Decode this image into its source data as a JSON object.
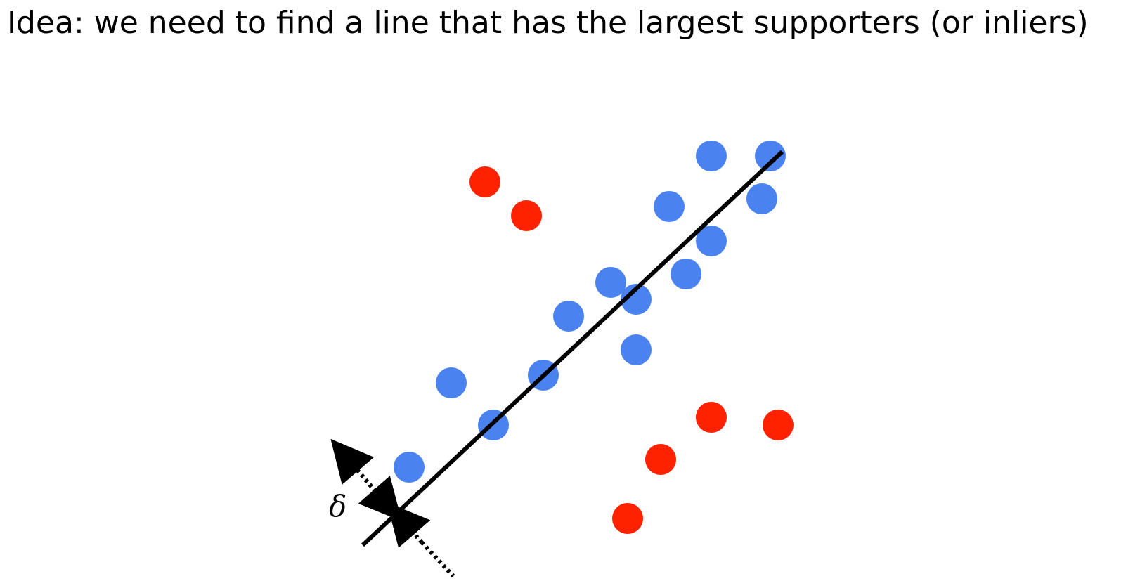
{
  "slide": {
    "text": "Idea: we need to find a line that has the largest supporters (or inliers)"
  },
  "diagram": {
    "delta_symbol": "δ",
    "colors": {
      "inlier": "#4a83f0",
      "outlier": "#ff2200",
      "line": "#000000"
    }
  }
}
